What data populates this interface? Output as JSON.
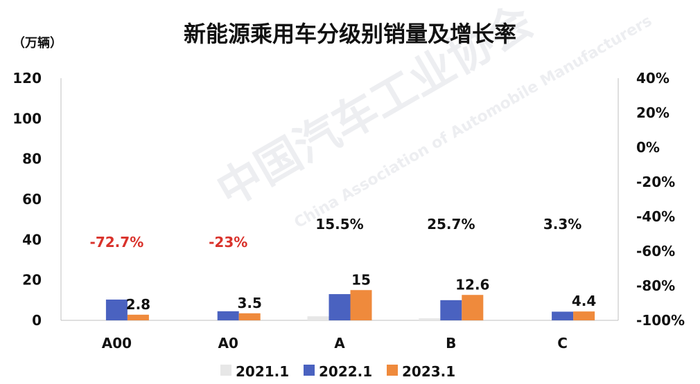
{
  "chart_data": {
    "type": "bar",
    "title": "新能源乘用车分级别销量及增长率",
    "ylabel": "（万辆）",
    "ylim": [
      0,
      120
    ],
    "yticks": [
      "0",
      "20",
      "40",
      "60",
      "80",
      "100",
      "120"
    ],
    "y2lim": [
      -100,
      40
    ],
    "y2ticks": [
      "-100%",
      "-80%",
      "-60%",
      "-40%",
      "-20%",
      "0%",
      "20%",
      "40%"
    ],
    "categories": [
      "A00",
      "A0",
      "A",
      "B",
      "C"
    ],
    "series": [
      {
        "name": "2021.1",
        "color": "#e7e7e7",
        "values": [
          0,
          0,
          2,
          1,
          0
        ],
        "labels": [
          "",
          "",
          "",
          "",
          ""
        ]
      },
      {
        "name": "2022.1",
        "color": "#4a62c0",
        "values": [
          10.3,
          4.5,
          13,
          10,
          4.3
        ],
        "labels": [
          "",
          "",
          "",
          "",
          ""
        ]
      },
      {
        "name": "2023.1",
        "color": "#ef8a3c",
        "values": [
          2.8,
          3.5,
          15,
          12.6,
          4.4
        ],
        "labels": [
          "2.8",
          "3.5",
          "15",
          "12.6",
          "4.4"
        ]
      }
    ],
    "growth_rates": [
      {
        "text": "-72.7%",
        "color": "#d9322b"
      },
      {
        "text": "-23%",
        "color": "#d9322b"
      },
      {
        "text": "15.5%",
        "color": "#111111"
      },
      {
        "text": "25.7%",
        "color": "#111111"
      },
      {
        "text": "3.3%",
        "color": "#111111"
      }
    ],
    "grid": false,
    "legend": "bottom-center",
    "watermark": [
      "中国汽车工业协会",
      "China Association of Automobile Manufacturers"
    ]
  }
}
